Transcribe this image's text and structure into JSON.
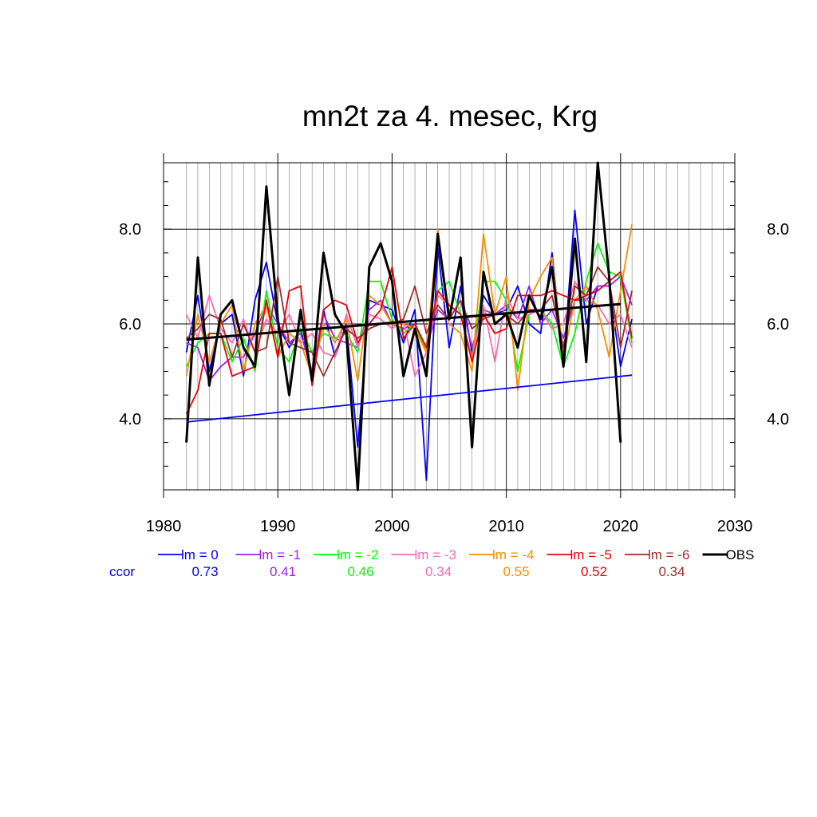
{
  "chart_data": {
    "type": "line",
    "title": "mn2t za 4. mesec, Krg",
    "xlabel": "",
    "ylabel": "",
    "xlim": [
      1980,
      2030
    ],
    "ylim": [
      2.5,
      9.4
    ],
    "x_ticks": [
      1980,
      1990,
      2000,
      2010,
      2020,
      2030
    ],
    "x_tick_labels": [
      "1980",
      "1990",
      "2000",
      "2010",
      "2020",
      "2030"
    ],
    "y_ticks": [
      4.0,
      6.0,
      8.0
    ],
    "y_tick_labels": [
      "4.0",
      "6.0",
      "8.0"
    ],
    "grid": true,
    "x": [
      1982,
      1983,
      1984,
      1985,
      1986,
      1987,
      1988,
      1989,
      1990,
      1991,
      1992,
      1993,
      1994,
      1995,
      1996,
      1997,
      1998,
      1999,
      2000,
      2001,
      2002,
      2003,
      2004,
      2005,
      2006,
      2007,
      2008,
      2009,
      2010,
      2011,
      2012,
      2013,
      2014,
      2015,
      2016,
      2017,
      2018,
      2019,
      2020,
      2021
    ],
    "series": [
      {
        "name": "lm = 0",
        "color": "#0000ff",
        "values": [
          5.4,
          6.6,
          5.0,
          6.0,
          6.2,
          4.9,
          6.5,
          7.3,
          6.0,
          5.5,
          5.9,
          4.9,
          6.3,
          5.3,
          6.0,
          3.4,
          6.5,
          6.4,
          6.3,
          5.6,
          6.3,
          2.7,
          7.6,
          5.5,
          6.8,
          5.4,
          6.6,
          6.2,
          6.3,
          6.8,
          6.0,
          5.8,
          7.5,
          5.2,
          8.4,
          6.0,
          6.8,
          6.8,
          5.1,
          6.1
        ]
      },
      {
        "name": "lm = -1",
        "color": "#a020f0",
        "values": [
          5.6,
          5.5,
          4.8,
          5.1,
          5.3,
          5.3,
          5.8,
          6.4,
          6.0,
          5.6,
          5.8,
          5.0,
          6.2,
          5.7,
          5.6,
          5.5,
          6.3,
          6.5,
          6.0,
          5.9,
          6.0,
          5.5,
          6.3,
          6.1,
          6.5,
          5.5,
          6.3,
          6.2,
          6.4,
          6.1,
          6.8,
          6.0,
          6.3,
          5.7,
          6.5,
          6.5,
          6.8,
          6.8,
          7.0,
          6.4
        ]
      },
      {
        "name": "lm = -2",
        "color": "#00ff00",
        "values": [
          5.1,
          5.6,
          5.8,
          5.8,
          5.2,
          5.7,
          5.0,
          6.7,
          5.5,
          5.2,
          5.9,
          5.4,
          5.8,
          5.7,
          5.8,
          5.4,
          6.9,
          6.9,
          6.1,
          5.8,
          6.0,
          5.4,
          6.7,
          6.9,
          6.2,
          5.3,
          6.9,
          6.9,
          6.5,
          5.0,
          6.2,
          6.3,
          6.0,
          5.1,
          5.8,
          6.9,
          7.7,
          7.1,
          7.0,
          5.6
        ]
      },
      {
        "name": "lm = -3",
        "color": "#ff69b4",
        "values": [
          6.2,
          5.7,
          6.6,
          5.9,
          5.6,
          6.1,
          5.4,
          6.1,
          5.8,
          6.2,
          5.6,
          5.8,
          5.4,
          5.3,
          6.2,
          5.5,
          6.2,
          6.1,
          5.9,
          6.1,
          4.9,
          5.4,
          6.6,
          6.4,
          6.2,
          5.3,
          6.4,
          5.2,
          6.6,
          6.1,
          6.2,
          6.3,
          5.9,
          6.0,
          6.9,
          6.5,
          6.4,
          6.0,
          6.2,
          5.5
        ]
      },
      {
        "name": "lm = -4",
        "color": "#ff8c00",
        "values": [
          4.9,
          6.2,
          5.2,
          6.0,
          6.4,
          5.0,
          6.0,
          6.4,
          5.3,
          5.8,
          5.6,
          4.9,
          6.0,
          5.6,
          6.1,
          4.8,
          6.6,
          6.4,
          6.0,
          6.0,
          5.9,
          5.4,
          8.0,
          6.0,
          5.8,
          5.0,
          7.9,
          6.2,
          7.0,
          4.6,
          6.5,
          7.0,
          7.4,
          5.3,
          6.5,
          6.8,
          6.3,
          5.3,
          6.7,
          8.1
        ]
      },
      {
        "name": "lm = -5",
        "color": "#ee0000",
        "values": [
          4.1,
          4.6,
          5.8,
          5.8,
          4.9,
          5.0,
          5.1,
          6.5,
          5.3,
          6.7,
          6.8,
          4.7,
          6.3,
          6.5,
          6.4,
          5.6,
          6.0,
          6.3,
          7.2,
          5.7,
          6.0,
          5.5,
          6.7,
          6.4,
          6.2,
          5.2,
          6.2,
          5.8,
          5.9,
          6.6,
          6.6,
          6.6,
          6.7,
          6.6,
          6.5,
          6.6,
          6.7,
          6.9,
          7.1,
          5.7
        ]
      },
      {
        "name": "lm = -6",
        "color": "#a52a2a",
        "values": [
          5.7,
          5.9,
          6.2,
          6.1,
          5.3,
          6.0,
          5.4,
          5.5,
          7.0,
          5.6,
          5.5,
          5.4,
          4.9,
          5.4,
          5.9,
          5.7,
          5.9,
          6.0,
          6.0,
          6.1,
          6.8,
          5.8,
          6.4,
          6.1,
          6.5,
          5.9,
          6.1,
          6.2,
          6.2,
          6.0,
          6.3,
          6.3,
          6.6,
          5.5,
          6.8,
          6.6,
          7.2,
          6.9,
          5.5,
          6.7
        ]
      },
      {
        "name": "OBS",
        "color": "#000000",
        "values": [
          3.5,
          7.4,
          4.7,
          6.2,
          6.5,
          5.5,
          5.1,
          8.9,
          6.1,
          4.5,
          6.3,
          4.8,
          7.5,
          6.2,
          5.8,
          2.5,
          7.2,
          7.7,
          6.9,
          4.9,
          5.9,
          4.9,
          7.9,
          6.1,
          7.4,
          3.4,
          7.1,
          6.0,
          6.2,
          5.5,
          6.6,
          6.1,
          7.2,
          5.1,
          7.8,
          5.2,
          9.4,
          7.0,
          3.5,
          null
        ]
      }
    ],
    "trend_lines": [
      {
        "name": "OBS trend",
        "color": "#000000",
        "x": [
          1982,
          2020
        ],
        "y": [
          5.67,
          6.42
        ]
      },
      {
        "name": "lm = 0 trend",
        "color": "#0000ff",
        "x": [
          1982,
          2021
        ],
        "y": [
          3.93,
          4.92
        ]
      }
    ],
    "legend": {
      "placement": "bottom",
      "label": "ccor",
      "ccor": [
        "0.73",
        "0.41",
        "0.46",
        "0.34",
        "0.55",
        "0.52",
        "0.34"
      ]
    }
  }
}
